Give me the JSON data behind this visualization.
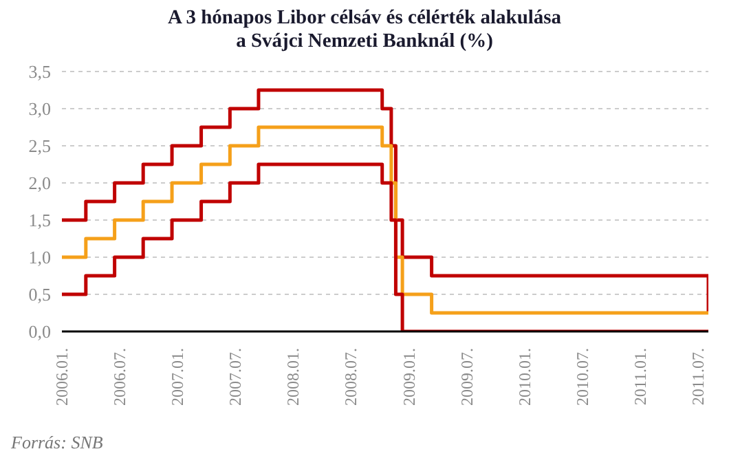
{
  "chart_data": {
    "type": "step",
    "title": "A 3 hónapos Libor célsáv és célérték alakulása\na Svájci Nemzeti Banknál (%)",
    "annotations": [
      "Forrás: SNB"
    ],
    "series": [
      {
        "color": "#c00000",
        "x": [
          "2006-01-01",
          "2006-03-16",
          "2006-06-15",
          "2006-09-14",
          "2006-12-14",
          "2007-03-15",
          "2007-06-14",
          "2007-09-13",
          "2008-10-08",
          "2008-11-06",
          "2008-11-20",
          "2008-12-11",
          "2009-03-12",
          "2011-08-03"
        ],
        "values": [
          1.5,
          1.75,
          2.0,
          2.25,
          2.5,
          2.75,
          3.0,
          3.25,
          3.0,
          2.5,
          1.5,
          1.0,
          0.75,
          0.25
        ]
      },
      {
        "color": "#f5a01a",
        "x": [
          "2006-01-01",
          "2006-03-16",
          "2006-06-15",
          "2006-09-14",
          "2006-12-14",
          "2007-03-15",
          "2007-06-14",
          "2007-09-13",
          "2008-10-08",
          "2008-11-06",
          "2008-11-20",
          "2008-12-11",
          "2009-03-12",
          "2011-08-03"
        ],
        "values": [
          1.0,
          1.25,
          1.5,
          1.75,
          2.0,
          2.25,
          2.5,
          2.75,
          2.5,
          2.0,
          1.0,
          0.5,
          0.25,
          0.25
        ]
      },
      {
        "color": "#c00000",
        "x": [
          "2006-01-01",
          "2006-03-16",
          "2006-06-15",
          "2006-09-14",
          "2006-12-14",
          "2007-03-15",
          "2007-06-14",
          "2007-09-13",
          "2008-10-08",
          "2008-11-06",
          "2008-11-20",
          "2008-12-11",
          "2011-08-03"
        ],
        "values": [
          0.5,
          0.75,
          1.0,
          1.25,
          1.5,
          1.75,
          2.0,
          2.25,
          2.0,
          1.5,
          0.5,
          0.0,
          0.0
        ]
      }
    ],
    "xlim": [
      "2006-01-01",
      "2011-08-03"
    ],
    "xticks": [
      {
        "value": "2006-01",
        "label": "2006.01."
      },
      {
        "value": "2006-07",
        "label": "2006.07."
      },
      {
        "value": "2007-01",
        "label": "2007.01."
      },
      {
        "value": "2007-07",
        "label": "2007.07."
      },
      {
        "value": "2008-01",
        "label": "2008.01."
      },
      {
        "value": "2008-07",
        "label": "2008.07."
      },
      {
        "value": "2009-01",
        "label": "2009.01."
      },
      {
        "value": "2009-07",
        "label": "2009.07."
      },
      {
        "value": "2010-01",
        "label": "2010.01."
      },
      {
        "value": "2010-07",
        "label": "2010.07."
      },
      {
        "value": "2011-01",
        "label": "2011.01."
      },
      {
        "value": "2011-07",
        "label": "2011.07."
      }
    ],
    "ylim": [
      0,
      3.5
    ],
    "yticks": [
      {
        "value": 0,
        "label": "0,0"
      },
      {
        "value": 0.5,
        "label": "0,5"
      },
      {
        "value": 1,
        "label": "1,0"
      },
      {
        "value": 1.5,
        "label": "1,5"
      },
      {
        "value": 2,
        "label": "2,0"
      },
      {
        "value": 2.5,
        "label": "2,5"
      },
      {
        "value": 3,
        "label": "3,0"
      },
      {
        "value": 3.5,
        "label": "3,5"
      }
    ],
    "grid": "y",
    "marker": "none",
    "line_style": "solid"
  }
}
